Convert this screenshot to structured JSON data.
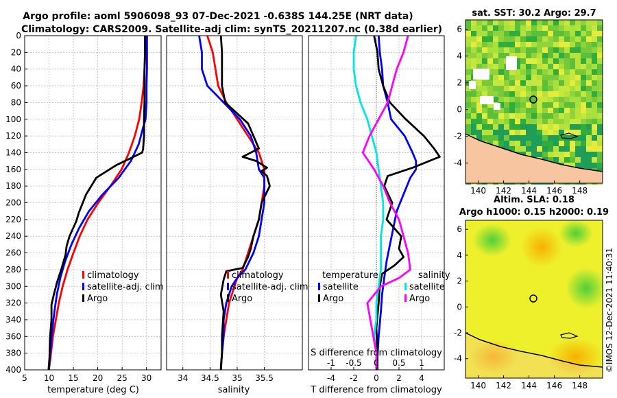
{
  "header": {
    "line1": "Argo profile: aoml 5906098_93 07-Dec-2021 -0.638S 144.25E (NRT data)",
    "line2": "Climatology: CARS2009. Satellite-adj clim: synTS_20211207.nc (0.38d earlier)"
  },
  "legend": {
    "climatology": "climatology",
    "satellite_adj": "satellite-adj. clim",
    "argo": "Argo",
    "temperature": "temperature",
    "salinity": "salinity",
    "satellite": "satellite"
  },
  "colors": {
    "climatology": "#ff0000",
    "satellite_adj": "#0000ff",
    "argo": "#000000",
    "temp_diff": "#00e5e5",
    "sal_diff": "#ff00ff",
    "land": "#f7c59f",
    "grid": "#bdbdbd"
  },
  "map_sst": {
    "title": "sat. SST: 30.2 Argo: 29.7",
    "xticks": [
      "140",
      "142",
      "144",
      "146",
      "148"
    ],
    "yticks": [
      "6",
      "4",
      "2",
      "0",
      "-2",
      "-4"
    ]
  },
  "map_sla": {
    "title1": "Altim. SLA: 0.18",
    "title2": "Argo h1000: 0.15 h2000: 0.19",
    "xticks": [
      "140",
      "142",
      "144",
      "146",
      "148"
    ],
    "yticks": [
      "6",
      "4",
      "2",
      "0",
      "-2",
      "-4"
    ]
  },
  "stamp": "©IMOS 12-Dec-2021 11:40:31",
  "chart_data": [
    {
      "type": "line",
      "title": "",
      "xlabel": "temperature (deg C)",
      "ylabel": "",
      "xlim": [
        5,
        33
      ],
      "ylim": [
        400,
        0
      ],
      "xticks": [
        5,
        10,
        15,
        20,
        25,
        30
      ],
      "yticks": [
        0,
        20,
        40,
        60,
        80,
        100,
        120,
        140,
        160,
        180,
        200,
        220,
        240,
        260,
        280,
        300,
        320,
        340,
        360,
        380,
        400
      ],
      "series": [
        {
          "name": "climatology",
          "color": "#ff0000",
          "x": [
            29.9,
            29.8,
            29.6,
            29.4,
            29.0,
            28.5,
            27.6,
            26.4,
            24.9,
            22.6,
            20.1,
            17.9,
            16.3,
            15.0,
            13.8,
            12.8,
            12.0,
            11.4,
            10.8,
            10.4,
            10.1,
            9.9
          ],
          "y": [
            0,
            20,
            40,
            60,
            80,
            100,
            120,
            140,
            160,
            180,
            200,
            220,
            240,
            260,
            280,
            300,
            320,
            340,
            360,
            380,
            395,
            400
          ]
        },
        {
          "name": "satellite-adj. clim",
          "color": "#0000ff",
          "x": [
            30.1,
            30.1,
            30.1,
            30.0,
            30.0,
            29.8,
            29.3,
            28.4,
            26.8,
            24.3,
            21.0,
            18.2,
            16.2,
            14.6,
            13.3,
            12.3,
            11.6,
            11.1,
            10.7,
            10.4,
            10.1,
            10.0
          ],
          "y": [
            0,
            20,
            40,
            60,
            80,
            100,
            110,
            130,
            150,
            170,
            190,
            210,
            230,
            250,
            270,
            290,
            310,
            330,
            350,
            370,
            390,
            400
          ]
        },
        {
          "name": "Argo",
          "color": "#000000",
          "x": [
            29.7,
            29.7,
            29.6,
            29.6,
            29.6,
            29.5,
            29.5,
            29.3,
            29.1,
            27.0,
            23.8,
            19.7,
            17.6,
            16.1,
            15.6,
            14.2,
            13.6,
            13.4,
            12.6,
            11.6,
            10.9,
            10.5,
            10.5,
            10.2,
            10.1,
            9.9
          ],
          "y": [
            0,
            20,
            40,
            60,
            80,
            100,
            120,
            136,
            140,
            146,
            155,
            170,
            190,
            212,
            222,
            240,
            252,
            262,
            278,
            296,
            312,
            322,
            340,
            362,
            385,
            400
          ]
        }
      ]
    },
    {
      "type": "line",
      "title": "",
      "xlabel": "salinity",
      "ylabel": "",
      "xlim": [
        33.7,
        36.2
      ],
      "ylim": [
        400,
        0
      ],
      "xticks": [
        34,
        34.5,
        35,
        35.5
      ],
      "xticklabels": [
        "34",
        "34.5",
        "35",
        "35.5"
      ],
      "series": [
        {
          "name": "climatology",
          "color": "#ff0000",
          "x": [
            34.45,
            34.55,
            34.6,
            34.65,
            34.8,
            35.0,
            35.2,
            35.4,
            35.5,
            35.5,
            35.45,
            35.4,
            35.3,
            35.2,
            35.1,
            35.0,
            34.95,
            34.85,
            34.8,
            34.75,
            34.72,
            34.7,
            34.7
          ],
          "y": [
            0,
            20,
            40,
            60,
            80,
            100,
            120,
            140,
            160,
            180,
            200,
            220,
            240,
            260,
            280,
            290,
            300,
            320,
            340,
            360,
            380,
            395,
            400
          ]
        },
        {
          "name": "satellite-adj. clim",
          "color": "#0000ff",
          "x": [
            34.3,
            34.35,
            34.35,
            34.45,
            34.75,
            35.05,
            35.25,
            35.35,
            35.4,
            35.5,
            35.5,
            35.5,
            35.45,
            35.4,
            35.3,
            35.15,
            35.0,
            34.9,
            34.8,
            34.75,
            34.75,
            34.72,
            34.7
          ],
          "y": [
            0,
            20,
            40,
            60,
            80,
            100,
            120,
            140,
            160,
            170,
            180,
            200,
            220,
            240,
            260,
            280,
            290,
            300,
            320,
            340,
            360,
            380,
            400
          ]
        },
        {
          "name": "Argo",
          "color": "#000000",
          "x": [
            34.7,
            34.72,
            34.72,
            34.72,
            34.78,
            35.2,
            35.3,
            35.4,
            35.1,
            35.35,
            35.55,
            35.45,
            35.55,
            35.6,
            35.45,
            35.4,
            35.3,
            35.25,
            35.2,
            35.1,
            34.8,
            34.75,
            34.7,
            34.75,
            34.72,
            34.72,
            34.7
          ],
          "y": [
            0,
            20,
            40,
            60,
            80,
            105,
            120,
            135,
            145,
            150,
            158,
            162,
            168,
            180,
            200,
            220,
            240,
            255,
            265,
            278,
            282,
            292,
            310,
            330,
            360,
            380,
            400
          ]
        }
      ]
    },
    {
      "type": "line",
      "title": "",
      "xlabel": "T difference from climatology",
      "xlabel_top": "S difference from climatology",
      "ylabel": "",
      "xlim": [
        -6,
        6
      ],
      "ylim": [
        400,
        0
      ],
      "xticks": [
        -4,
        -2,
        0,
        2,
        4
      ],
      "top_xticks": [
        -1,
        -0.5,
        0,
        0.5,
        1
      ],
      "top_xlim": [
        -1.5,
        1.5
      ],
      "series": [
        {
          "name": "temperature satellite",
          "color": "#0000ff",
          "axis": "T",
          "x": [
            0.2,
            0.3,
            0.5,
            0.6,
            1.0,
            1.3,
            2.5,
            3.2,
            3.5,
            3.5,
            3.0,
            2.4,
            1.8,
            1.5,
            1.2,
            0.9,
            0.7,
            0.5,
            0.4,
            0.2,
            0.1,
            0.1
          ],
          "y": [
            0,
            20,
            40,
            60,
            80,
            100,
            120,
            140,
            150,
            160,
            170,
            190,
            210,
            230,
            250,
            270,
            290,
            310,
            330,
            360,
            385,
            400
          ]
        },
        {
          "name": "temperature Argo",
          "color": "#000000",
          "axis": "T",
          "x": [
            -0.2,
            0.1,
            0.2,
            0.6,
            1.2,
            2.6,
            4.2,
            5.1,
            5.6,
            3.2,
            1.0,
            0.7,
            1.4,
            0.9,
            2.2,
            2.0,
            2.4,
            1.6,
            0.5,
            0.3,
            0.2,
            0.0,
            0.1,
            0.1
          ],
          "y": [
            0,
            20,
            40,
            60,
            80,
            100,
            120,
            135,
            145,
            158,
            168,
            180,
            200,
            220,
            240,
            255,
            265,
            275,
            285,
            300,
            320,
            350,
            380,
            400
          ]
        },
        {
          "name": "salinity satellite",
          "color": "#00e5e5",
          "axis": "S",
          "x": [
            -0.45,
            -0.5,
            -0.5,
            -0.45,
            -0.35,
            -0.2,
            -0.1,
            0.0,
            0.05,
            0.1,
            0.15,
            0.15,
            0.1,
            0.1,
            0.1,
            0.05,
            0.0,
            0.0,
            -0.05,
            0.0,
            0.0
          ],
          "y": [
            0,
            20,
            40,
            60,
            80,
            100,
            120,
            140,
            160,
            180,
            200,
            220,
            240,
            260,
            280,
            300,
            320,
            340,
            360,
            380,
            400
          ]
        },
        {
          "name": "salinity Argo",
          "color": "#ff00ff",
          "axis": "S",
          "x": [
            0.7,
            0.6,
            0.45,
            0.35,
            0.25,
            0.05,
            -0.15,
            -0.3,
            -0.05,
            0.15,
            0.3,
            0.5,
            0.6,
            0.7,
            0.75,
            0.5,
            0.1,
            -0.2,
            -0.1,
            0.0,
            0.0
          ],
          "y": [
            0,
            20,
            40,
            60,
            80,
            100,
            120,
            140,
            160,
            180,
            200,
            220,
            240,
            260,
            280,
            290,
            300,
            320,
            350,
            380,
            400
          ]
        }
      ]
    }
  ]
}
